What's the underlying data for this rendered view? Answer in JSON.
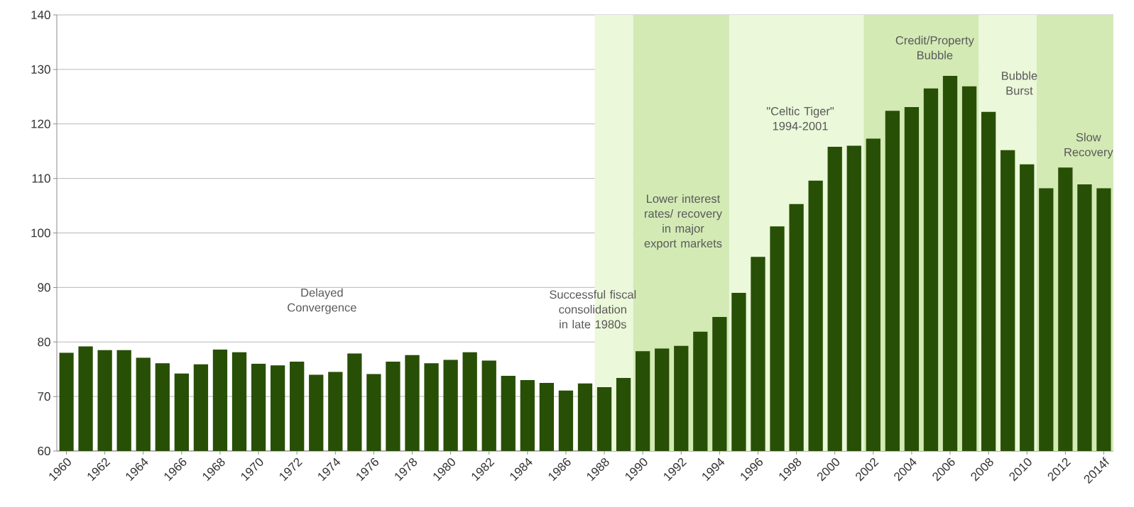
{
  "chart_data": {
    "type": "bar",
    "color": "#284f06",
    "x": [
      1960,
      1961,
      1962,
      1963,
      1964,
      1965,
      1966,
      1967,
      1968,
      1969,
      1970,
      1971,
      1972,
      1973,
      1974,
      1975,
      1976,
      1977,
      1978,
      1979,
      1980,
      1981,
      1982,
      1983,
      1984,
      1985,
      1986,
      1987,
      1988,
      1989,
      1990,
      1991,
      1992,
      1993,
      1994,
      1995,
      1996,
      1997,
      1998,
      1999,
      2000,
      2001,
      2002,
      2003,
      2004,
      2005,
      2006,
      2007,
      2008,
      2009,
      2010,
      2011,
      2012,
      2013,
      2014
    ],
    "values": [
      78,
      79.2,
      78.5,
      78.5,
      77.1,
      76.1,
      74.2,
      75.9,
      78.6,
      78.1,
      76,
      75.7,
      76.4,
      74,
      74.5,
      77.9,
      74.1,
      76.4,
      77.6,
      76.1,
      76.7,
      78.1,
      76.6,
      73.8,
      73,
      72.5,
      71.1,
      72.4,
      71.7,
      73.4,
      78.3,
      78.8,
      79.3,
      81.9,
      84.6,
      89,
      95.6,
      101.2,
      105.3,
      109.6,
      115.8,
      116,
      117.3,
      122.4,
      123.1,
      126.5,
      128.8,
      126.9,
      122.2,
      115.2,
      112.6,
      108.2,
      112,
      108.9,
      108.2
    ],
    "xlim": [
      1959.5,
      2014.5
    ],
    "xticks": [
      1960,
      1962,
      1964,
      1966,
      1968,
      1970,
      1972,
      1974,
      1976,
      1978,
      1980,
      1982,
      1984,
      1986,
      1988,
      1990,
      1992,
      1994,
      1996,
      1998,
      2000,
      2002,
      2004,
      2006,
      2008,
      2010,
      2012,
      {
        "value": 2014,
        "label": "2014f"
      }
    ],
    "ylim": [
      60,
      140
    ],
    "yticks": [
      60,
      70,
      80,
      90,
      100,
      110,
      120,
      130,
      140
    ],
    "grid": "y",
    "bands": [
      {
        "axis": "x",
        "from": 1987.5,
        "to": 1989.5,
        "color": "#ebf8d9"
      },
      {
        "axis": "x",
        "from": 1989.5,
        "to": 1994.5,
        "color": "#d3eab5"
      },
      {
        "axis": "x",
        "from": 1994.5,
        "to": 2001.5,
        "color": "#ebf8d9"
      },
      {
        "axis": "x",
        "from": 2001.5,
        "to": 2007.5,
        "color": "#d3eab5"
      },
      {
        "axis": "x",
        "from": 2007.5,
        "to": 2010.5,
        "color": "#ebf8d9"
      },
      {
        "axis": "x",
        "from": 2010.5,
        "to": 2014.5,
        "color": "#d3eab5"
      }
    ],
    "annotations": [
      "Delayed Convergence",
      "Successful fiscal consolidation in late 1980s",
      "Lower interest rates/ recovery in major export markets",
      "\"Celtic Tiger\" 1994-2001",
      "Credit/Property Bubble",
      "Bubble Burst",
      "Slow Recovery"
    ]
  }
}
